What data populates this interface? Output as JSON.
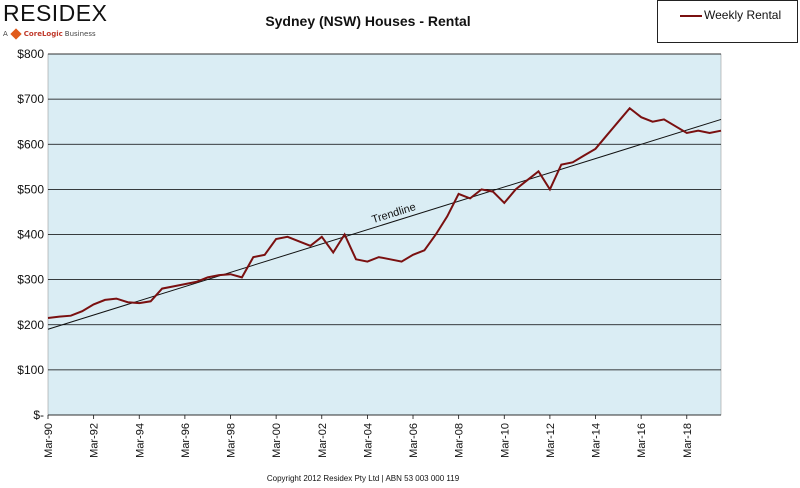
{
  "logo": {
    "name": "RESIDEX",
    "tagline_prefix": "A",
    "tagline_brand": "CoreLogic",
    "tagline_suffix": "Business"
  },
  "legend": {
    "label": "Weekly Rental"
  },
  "footer": {
    "copyright": "Copyright 2012 Residex Pty Ltd | ABN 53 003 000 119"
  },
  "colors": {
    "series": "#7a1010",
    "plot_bg": "#daedf4",
    "trend": "#111111",
    "grid": "#000000"
  },
  "chart_data": {
    "type": "line",
    "title": "Sydney (NSW) Houses - Rental",
    "xlabel": "",
    "ylabel": "",
    "ylim": [
      0,
      800
    ],
    "xlim": [
      "1990-03",
      "2019-09"
    ],
    "grid": true,
    "legend_position": "top-right",
    "y_ticks": [
      0,
      100,
      200,
      300,
      400,
      500,
      600,
      700,
      800
    ],
    "y_tick_labels": [
      "$-",
      "$100",
      "$200",
      "$300",
      "$400",
      "$500",
      "$600",
      "$700",
      "$800"
    ],
    "x_tick_labels": [
      "Mar-90",
      "Mar-92",
      "Mar-94",
      "Mar-96",
      "Mar-98",
      "Mar-00",
      "Mar-02",
      "Mar-04",
      "Mar-06",
      "Mar-08",
      "Mar-10",
      "Mar-12",
      "Mar-14",
      "Mar-16",
      "Mar-18"
    ],
    "x_ticks": [
      "1990-03",
      "1992-03",
      "1994-03",
      "1996-03",
      "1998-03",
      "2000-03",
      "2002-03",
      "2004-03",
      "2006-03",
      "2008-03",
      "2010-03",
      "2012-03",
      "2014-03",
      "2016-03",
      "2018-03"
    ],
    "annotations": [
      {
        "text": "Trendline",
        "x": "2004-06",
        "y": 425
      }
    ],
    "trendline": {
      "x": [
        "1990-03",
        "2019-09"
      ],
      "y": [
        190,
        655
      ]
    },
    "series": [
      {
        "name": "Weekly Rental",
        "x": [
          "1990-03",
          "1990-09",
          "1991-03",
          "1991-09",
          "1992-03",
          "1992-09",
          "1993-03",
          "1993-09",
          "1994-03",
          "1994-09",
          "1995-03",
          "1995-09",
          "1996-03",
          "1996-09",
          "1997-03",
          "1997-09",
          "1998-03",
          "1998-09",
          "1999-03",
          "1999-09",
          "2000-03",
          "2000-09",
          "2001-03",
          "2001-09",
          "2002-03",
          "2002-09",
          "2003-03",
          "2003-09",
          "2004-03",
          "2004-09",
          "2005-03",
          "2005-09",
          "2006-03",
          "2006-09",
          "2007-03",
          "2007-09",
          "2008-03",
          "2008-09",
          "2009-03",
          "2009-09",
          "2010-03",
          "2010-09",
          "2011-03",
          "2011-09",
          "2012-03",
          "2012-09",
          "2013-03",
          "2013-09",
          "2014-03",
          "2014-09",
          "2015-03",
          "2015-09",
          "2016-03",
          "2016-09",
          "2017-03",
          "2017-09",
          "2018-03",
          "2018-09",
          "2019-03",
          "2019-09"
        ],
        "y": [
          215,
          218,
          220,
          230,
          245,
          255,
          258,
          250,
          248,
          252,
          280,
          285,
          290,
          295,
          305,
          310,
          312,
          305,
          350,
          355,
          390,
          395,
          385,
          375,
          395,
          360,
          400,
          345,
          340,
          350,
          345,
          340,
          355,
          365,
          400,
          440,
          490,
          480,
          500,
          495,
          470,
          500,
          520,
          540,
          500,
          555,
          560,
          575,
          590,
          620,
          650,
          680,
          660,
          650,
          655,
          640,
          625,
          630,
          625,
          630
        ]
      }
    ]
  }
}
